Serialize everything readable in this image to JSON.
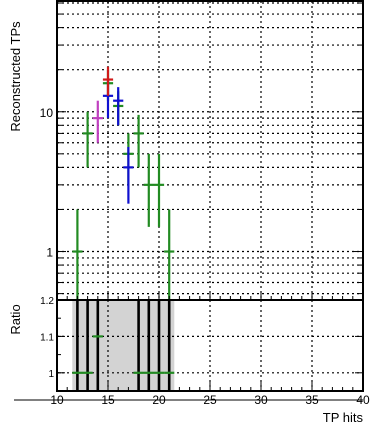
{
  "chart_data": {
    "type": "scatter",
    "main_panel": {
      "ylabel": "Reconstructed TPs",
      "yscale": "log",
      "ylim": [
        0.45,
        62
      ],
      "ytick_labels": [
        "1",
        "10"
      ],
      "series": [
        {
          "color": "#228b22",
          "points": [
            {
              "x": 12,
              "y": 1,
              "ylo": 0.3,
              "yhi": 2
            },
            {
              "x": 13,
              "y": 7,
              "ylo": 4,
              "yhi": 10
            },
            {
              "x": 15,
              "y": 16,
              "ylo": 12,
              "yhi": 20
            },
            {
              "x": 16,
              "y": 11,
              "ylo": 8,
              "yhi": 14
            },
            {
              "x": 17,
              "y": 5,
              "ylo": 3,
              "yhi": 7
            },
            {
              "x": 18,
              "y": 7,
              "ylo": 4,
              "yhi": 9.5
            },
            {
              "x": 19,
              "y": 3,
              "ylo": 1.5,
              "yhi": 5
            },
            {
              "x": 20,
              "y": 3,
              "ylo": 1.5,
              "yhi": 5
            },
            {
              "x": 21,
              "y": 1,
              "ylo": 0.3,
              "yhi": 2
            }
          ]
        },
        {
          "color": "#1010d0",
          "points": [
            {
              "x": 15,
              "y": 13,
              "ylo": 9,
              "yhi": 17
            },
            {
              "x": 16,
              "y": 12,
              "ylo": 8,
              "yhi": 15
            },
            {
              "x": 17,
              "y": 4,
              "ylo": 2.2,
              "yhi": 5.6
            }
          ]
        },
        {
          "color": "#d01a1a",
          "points": [
            {
              "x": 15,
              "y": 17,
              "ylo": 13,
              "yhi": 21
            }
          ]
        },
        {
          "color": "#c040c0",
          "points": [
            {
              "x": 14,
              "y": 9,
              "ylo": 6,
              "yhi": 12
            }
          ]
        }
      ]
    },
    "ratio_panel": {
      "ylabel": "Ratio",
      "ylim": [
        0.95,
        1.2
      ],
      "ytick_labels": [
        "1",
        "1.1",
        "1.2"
      ],
      "band": {
        "xmin": 11.5,
        "xmax": 21.5,
        "color": "#d3d3d3"
      },
      "bars": [
        12,
        13,
        14,
        18,
        19,
        20,
        21
      ],
      "points": [
        {
          "x": 12,
          "y": 1
        },
        {
          "x": 13,
          "y": 1
        },
        {
          "x": 14,
          "y": 1.1
        },
        {
          "x": 18,
          "y": 1
        },
        {
          "x": 19,
          "y": 1
        },
        {
          "x": 20,
          "y": 1
        },
        {
          "x": 21,
          "y": 1
        }
      ]
    },
    "xlabel": "TP hits",
    "xlim": [
      10,
      40
    ],
    "xtick_labels": [
      "10",
      "15",
      "20",
      "25",
      "30",
      "35",
      "40"
    ],
    "grid": true
  }
}
